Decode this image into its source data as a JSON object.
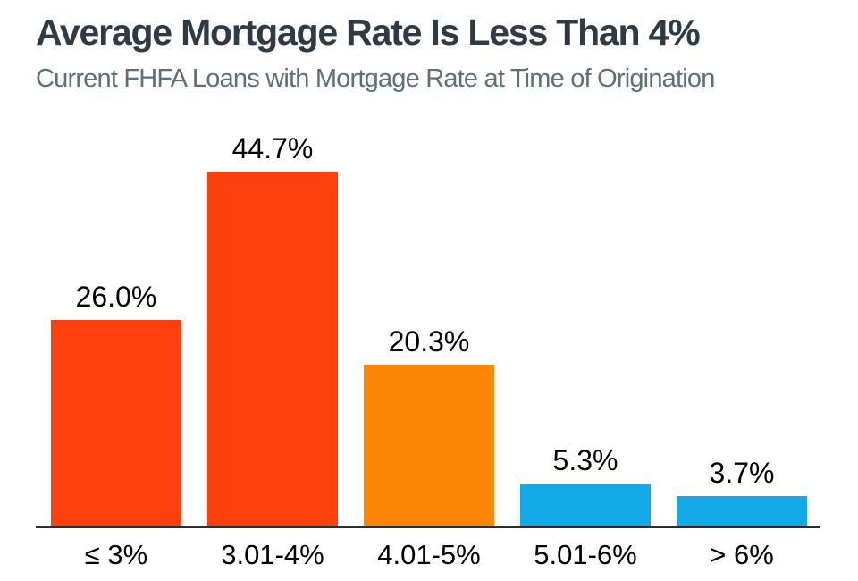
{
  "header": {
    "title": "Average Mortgage Rate Is Less Than 4%",
    "subtitle": "Current FHFA Loans with Mortgage Rate at Time of Origination"
  },
  "colors": {
    "title_text": "#2e3a45",
    "subtitle_text": "#5b7078",
    "label_text": "#000000",
    "axis_line": "#2e2e2e",
    "red_orange": "#fe3f0e",
    "orange": "#fd8608",
    "blue": "#14aae8"
  },
  "chart_data": {
    "type": "bar",
    "title": "Average Mortgage Rate Is Less Than 4%",
    "subtitle": "Current FHFA Loans with Mortgage Rate at Time of Origination",
    "categories": [
      "≤ 3%",
      "3.01-4%",
      "4.01-5%",
      "5.01-6%",
      "> 6%"
    ],
    "values": [
      26.0,
      44.7,
      20.3,
      5.3,
      3.7
    ],
    "value_labels": [
      "26.0%",
      "44.7%",
      "20.3%",
      "5.3%",
      "3.7%"
    ],
    "bar_colors": [
      "#fe3f0e",
      "#fe3f0e",
      "#fd8608",
      "#14aae8",
      "#14aae8"
    ],
    "xlabel": "",
    "ylabel": "",
    "ylim": [
      0,
      50
    ],
    "grid": false,
    "legend": false,
    "value_label_position": "above-bar",
    "y_axis_visible": false,
    "x_axis_line_visible": true
  }
}
